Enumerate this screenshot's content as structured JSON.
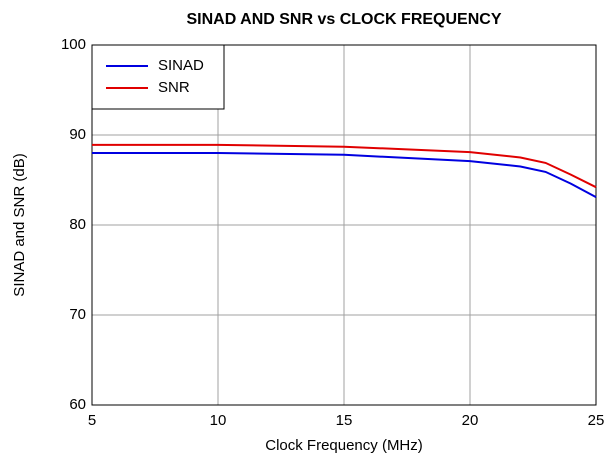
{
  "chart_data": {
    "type": "line",
    "title": "SINAD AND SNR vs CLOCK FREQUENCY",
    "xlabel": "Clock Frequency (MHz)",
    "ylabel": "SINAD and SNR (dB)",
    "x": [
      5,
      10,
      15,
      20,
      22,
      23,
      24,
      25
    ],
    "series": [
      {
        "name": "SINAD",
        "color": "#0000e0",
        "values": [
          88.0,
          88.0,
          87.8,
          87.1,
          86.5,
          85.9,
          84.6,
          83.1
        ]
      },
      {
        "name": "SNR",
        "color": "#e00000",
        "values": [
          88.9,
          88.9,
          88.7,
          88.1,
          87.5,
          86.9,
          85.6,
          84.2
        ]
      }
    ],
    "xlim": [
      5,
      25
    ],
    "xticks": [
      5,
      10,
      15,
      20,
      25
    ],
    "ylim": [
      60,
      100
    ],
    "yticks": [
      60,
      70,
      80,
      90,
      100
    ],
    "grid": true,
    "legend": "upper left"
  }
}
